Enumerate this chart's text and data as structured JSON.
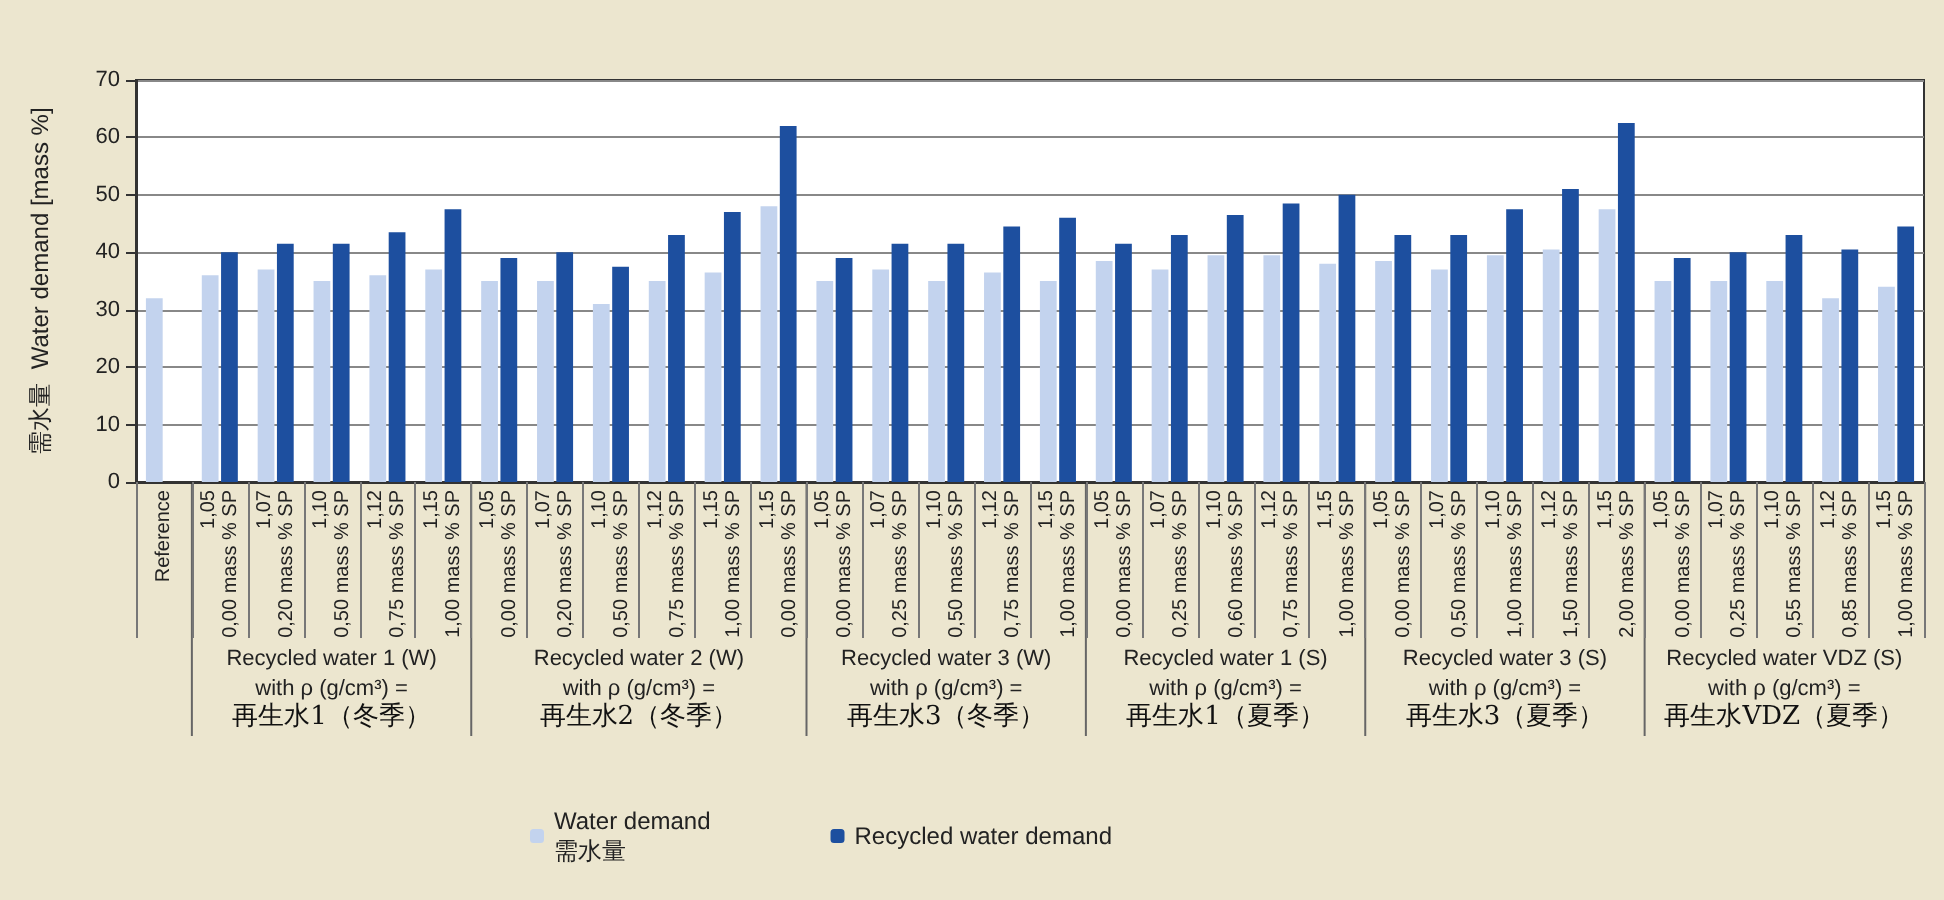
{
  "chart_data": {
    "type": "bar",
    "ylabel": "需水量  Water demand [mass %]",
    "categories": [
      "Reference",
      "1,05\n0,00 mass % SP",
      "1,07\n0,20 mass % SP",
      "1,10\n0,50 mass % SP",
      "1,12\n0,75 mass % SP",
      "1,15\n1,00 mass % SP",
      "1,05\n0,00 mass % SP",
      "1,07\n0,20 mass % SP",
      "1,10\n0,50 mass % SP",
      "1,12\n0,75 mass % SP",
      "1,15\n1,00 mass % SP",
      "1,15\n0,00 mass % SP",
      "1,05\n0,00 mass % SP",
      "1,07\n0,25 mass % SP",
      "1,10\n0,50 mass % SP",
      "1,12\n0,75 mass % SP",
      "1,15\n1,00 mass % SP",
      "1,05\n0,00 mass % SP",
      "1,07\n0,25 mass % SP",
      "1,10\n0,60 mass % SP",
      "1,12\n0,75 mass % SP",
      "1,15\n1,00 mass % SP",
      "1,05\n0,00 mass % SP",
      "1,07\n0,50 mass % SP",
      "1,10\n1,00 mass % SP",
      "1,12\n1,50 mass % SP",
      "1,15\n2,00 mass % SP",
      "1,05\n0,00 mass % SP",
      "1,07\n0,25 mass % SP",
      "1,10\n0,55 mass % SP",
      "1,12\n0,85 mass % SP",
      "1,15\n1,00 mass % SP"
    ],
    "series": [
      {
        "name": "Water demand\n需水量",
        "color": "#c3d3ee",
        "values": [
          32,
          36,
          37,
          35,
          36,
          37,
          35,
          35,
          31,
          35,
          36.5,
          48,
          35,
          37,
          35,
          36.5,
          35,
          38.5,
          37,
          39.5,
          39.5,
          38,
          38.5,
          37,
          39.5,
          40.5,
          47.5,
          35,
          35,
          35,
          32,
          34
        ]
      },
      {
        "name": "Recycled water demand",
        "color": "#1d4f9f",
        "values": [
          null,
          40,
          41.5,
          41.5,
          43.5,
          47.5,
          39,
          40,
          37.5,
          43,
          47,
          62,
          39,
          41.5,
          41.5,
          44.5,
          46,
          41.5,
          43,
          46.5,
          48.5,
          50,
          43,
          43,
          47.5,
          51,
          62.5,
          39,
          40,
          43,
          40.5,
          44.5
        ]
      }
    ],
    "annotations": [
      "Recycled water 1 (W)\nwith ρ (g/cm³) =\n再生水1（冬季）",
      "Recycled water 2 (W)\nwith ρ (g/cm³) =\n再生水2（冬季）",
      "Recycled water 3 (W)\nwith ρ (g/cm³) =\n再生水3（冬季）",
      "Recycled water 1 (S)\nwith ρ (g/cm³) =\n再生水1（夏季）",
      "Recycled water 3 (S)\nwith ρ (g/cm³) =\n再生水3（夏季）",
      "Recycled water VDZ (S)\nwith ρ (g/cm³) =\n再生水VDZ（夏季）"
    ],
    "ylim": [
      0,
      70
    ],
    "yticks": [
      0,
      10,
      20,
      30,
      40,
      50,
      60,
      70
    ],
    "grid": "y",
    "legend": "bottom"
  }
}
